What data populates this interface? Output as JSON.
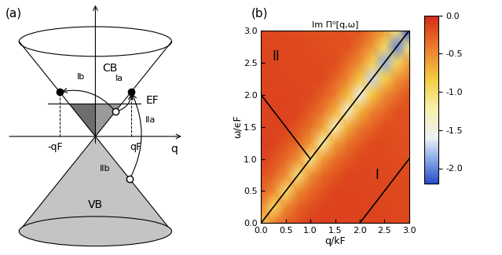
{
  "diagram": {
    "panel_label": "(a)",
    "labels": {
      "cb": "CB",
      "vb": "VB",
      "fermi": "EF",
      "q": "q",
      "minus_qf": "-qF",
      "qf": "qF",
      "ia": "Ia",
      "ib": "Ib",
      "iia": "IIa",
      "iib": "IIb"
    }
  },
  "chart_data": {
    "type": "heatmap",
    "panel_label": "(b)",
    "title": "Im Π⁰[q,ω]",
    "x_label": "q/kF",
    "y_label": "ω/ϵF",
    "x": [
      0,
      0.25,
      0.5,
      0.75,
      1,
      1.25,
      1.5,
      1.75,
      2,
      2.25,
      2.5,
      2.75,
      3
    ],
    "y": [
      0,
      0.25,
      0.5,
      0.75,
      1,
      1.25,
      1.5,
      1.75,
      2,
      2.25,
      2.5,
      2.75,
      3
    ],
    "cells": [
      [
        -0.9,
        -0.46,
        -0.29,
        -0.2,
        -0.12,
        -0.12,
        -0.13,
        -0.13,
        -0.13,
        -0.14,
        -0.14,
        -0.15,
        -0.16
      ],
      [
        -0.46,
        -0.95,
        -0.49,
        -0.3,
        -0.21,
        -0.13,
        -0.13,
        -0.13,
        -0.14,
        -0.14,
        -0.15,
        -0.16,
        -0.16
      ],
      [
        -0.29,
        -0.49,
        -1.0,
        -0.51,
        -0.32,
        -0.22,
        -0.13,
        -0.14,
        -0.14,
        -0.15,
        -0.16,
        -0.16,
        -0.17
      ],
      [
        -0.2,
        -0.3,
        -0.51,
        -1.05,
        -0.54,
        -0.33,
        -0.23,
        -0.14,
        -0.15,
        -0.16,
        -0.16,
        -0.17,
        -0.18
      ],
      [
        -0.12,
        -0.21,
        -0.32,
        -0.54,
        -1.1,
        -0.58,
        -0.36,
        -0.25,
        -0.16,
        -0.16,
        -0.17,
        -0.18,
        -0.19
      ],
      [
        -0.12,
        -0.13,
        -0.22,
        -0.33,
        -0.58,
        -1.2,
        -0.63,
        -0.39,
        -0.27,
        -0.17,
        -0.18,
        -0.19,
        -0.2
      ],
      [
        -0.13,
        -0.13,
        -0.13,
        -0.23,
        -0.36,
        -0.63,
        -1.3,
        -0.68,
        -0.42,
        -0.3,
        -0.19,
        -0.2,
        -0.2
      ],
      [
        -0.13,
        -0.13,
        -0.14,
        -0.14,
        -0.25,
        -0.39,
        -0.68,
        -1.4,
        -0.74,
        -0.47,
        -0.33,
        -0.2,
        -0.21
      ],
      [
        -0.13,
        -0.14,
        -0.14,
        -0.15,
        -0.16,
        -0.27,
        -0.42,
        -0.74,
        -1.55,
        -0.81,
        -0.51,
        -0.36,
        -0.22
      ],
      [
        -0.14,
        -0.14,
        -0.15,
        -0.16,
        -0.16,
        -0.17,
        -0.3,
        -0.47,
        -0.81,
        -1.7,
        -0.89,
        -0.56,
        -0.39
      ],
      [
        -0.14,
        -0.15,
        -0.16,
        -0.16,
        -0.17,
        -0.18,
        -0.19,
        -0.33,
        -0.51,
        -0.89,
        -1.85,
        -0.96,
        -0.6
      ],
      [
        -0.15,
        -0.16,
        -0.16,
        -0.17,
        -0.18,
        -0.19,
        -0.2,
        -0.2,
        -0.36,
        -0.56,
        -0.96,
        -2.0,
        -1.05
      ],
      [
        -0.16,
        -0.16,
        -0.17,
        -0.18,
        -0.19,
        -0.2,
        -0.2,
        -0.21,
        -0.22,
        -0.39,
        -0.6,
        -1.05,
        -2.2
      ]
    ],
    "xlim": [
      0,
      3
    ],
    "ylim": [
      0,
      3
    ],
    "xticks": [
      {
        "value": 0,
        "label": "0.0"
      },
      {
        "value": 0.5,
        "label": "0.5"
      },
      {
        "value": 1,
        "label": "1.0"
      },
      {
        "value": 1.5,
        "label": "1.5"
      },
      {
        "value": 2,
        "label": "2.0"
      },
      {
        "value": 2.5,
        "label": "2.5"
      },
      {
        "value": 3,
        "label": "3.0"
      }
    ],
    "yticks": [
      {
        "value": 0,
        "label": "0.0"
      },
      {
        "value": 0.5,
        "label": "0.5"
      },
      {
        "value": 1,
        "label": "1.0"
      },
      {
        "value": 1.5,
        "label": "1.5"
      },
      {
        "value": 2,
        "label": "2.0"
      },
      {
        "value": 2.5,
        "label": "2.5"
      },
      {
        "value": 3,
        "label": "3.0"
      }
    ],
    "colorbar_range": [
      -2.2,
      0
    ],
    "colorbar_ticks": [
      {
        "value": 0,
        "label": "0.0"
      },
      {
        "value": -0.5,
        "label": "-0.5"
      },
      {
        "value": -1,
        "label": "-1.0"
      },
      {
        "value": -1.5,
        "label": "-1.5"
      },
      {
        "value": -2,
        "label": "-2.0"
      }
    ],
    "lines": [
      {
        "x": [
          0,
          3
        ],
        "y": [
          0,
          3
        ],
        "color": "#000000"
      },
      {
        "x": [
          0,
          1
        ],
        "y": [
          2,
          1
        ],
        "color": "#000000"
      },
      {
        "x": [
          2,
          3
        ],
        "y": [
          0,
          1
        ],
        "color": "#000000"
      }
    ],
    "annotations": [
      {
        "text": "I",
        "x": 2.35,
        "y": 0.75
      },
      {
        "text": "II",
        "x": 0.3,
        "y": 2.6
      }
    ]
  }
}
